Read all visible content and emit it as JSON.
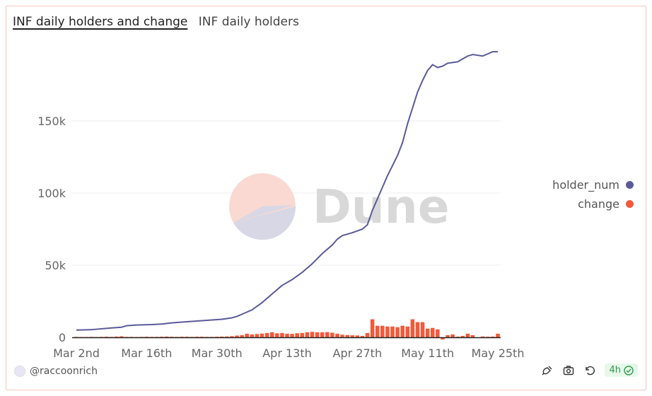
{
  "header": {
    "title": "INF daily holders and change",
    "subtitle": "INF daily holders"
  },
  "watermark": "Dune",
  "footer": {
    "author": "@raccoonrich",
    "refresh_badge": "4h"
  },
  "colors": {
    "holder_line": "#5a5a9a",
    "change_bar": "#f15a3a",
    "grid": "#ececec",
    "axis_text": "#666666"
  },
  "chart_data": {
    "type": "line+bar",
    "title": "INF daily holders and change",
    "xlabel": "",
    "ylabel": "",
    "ylim": [
      0,
      200000
    ],
    "yticks": [
      0,
      50000,
      100000,
      150000
    ],
    "ytick_labels": [
      "0",
      "50k",
      "100k",
      "150k"
    ],
    "xtick_labels": [
      "Mar 2nd",
      "Mar 16th",
      "Mar 30th",
      "Apr 13th",
      "Apr 27th",
      "May 11th",
      "May 25th"
    ],
    "legend": [
      "holder_num",
      "change"
    ],
    "legend_position": "right",
    "start_date": "2024-03-02",
    "days": 85,
    "series": [
      {
        "name": "holder_num",
        "kind": "line",
        "color": "#5a5a9a",
        "points": [
          [
            0,
            5000
          ],
          [
            3,
            5300
          ],
          [
            7,
            6500
          ],
          [
            9,
            7000
          ],
          [
            10,
            8000
          ],
          [
            12,
            8500
          ],
          [
            15,
            8800
          ],
          [
            17,
            9200
          ],
          [
            19,
            10000
          ],
          [
            22,
            10800
          ],
          [
            25,
            11500
          ],
          [
            27,
            12000
          ],
          [
            29,
            12500
          ],
          [
            31,
            13500
          ],
          [
            32,
            14500
          ],
          [
            33,
            16000
          ],
          [
            35,
            19000
          ],
          [
            37,
            24000
          ],
          [
            39,
            30000
          ],
          [
            41,
            36000
          ],
          [
            43,
            40000
          ],
          [
            45,
            45000
          ],
          [
            47,
            51000
          ],
          [
            49,
            58000
          ],
          [
            51,
            64000
          ],
          [
            52,
            68000
          ],
          [
            53,
            70500
          ],
          [
            55,
            72500
          ],
          [
            57,
            75000
          ],
          [
            58,
            78000
          ],
          [
            59,
            88000
          ],
          [
            61,
            104000
          ],
          [
            62,
            112000
          ],
          [
            64,
            126000
          ],
          [
            65,
            135000
          ],
          [
            66,
            148000
          ],
          [
            68,
            170000
          ],
          [
            69,
            178000
          ],
          [
            70,
            185000
          ],
          [
            71,
            189000
          ],
          [
            72,
            187000
          ],
          [
            73,
            188000
          ],
          [
            74,
            190000
          ],
          [
            75,
            190500
          ],
          [
            76,
            191000
          ],
          [
            77,
            193000
          ],
          [
            78,
            195000
          ],
          [
            79,
            196000
          ],
          [
            80,
            195500
          ],
          [
            81,
            195000
          ],
          [
            82,
            196500
          ],
          [
            83,
            198000
          ],
          [
            84,
            198000
          ]
        ]
      },
      {
        "name": "change",
        "kind": "bar",
        "color": "#f15a3a",
        "values": [
          300,
          200,
          200,
          300,
          200,
          300,
          400,
          300,
          500,
          700,
          300,
          300,
          200,
          300,
          400,
          300,
          300,
          400,
          500,
          400,
          300,
          400,
          400,
          300,
          400,
          400,
          300,
          300,
          400,
          500,
          600,
          800,
          1200,
          1500,
          2500,
          2000,
          2300,
          2600,
          3000,
          3500,
          2800,
          3000,
          2500,
          2400,
          2800,
          3000,
          3500,
          3800,
          3500,
          3500,
          3600,
          3200,
          2500,
          1800,
          1600,
          1400,
          1300,
          1000,
          3000,
          12500,
          8000,
          8000,
          7500,
          7500,
          7000,
          8000,
          7500,
          12500,
          10500,
          10500,
          6000,
          6500,
          5500,
          -1500,
          1500,
          2000,
          500,
          1000,
          2500,
          1500,
          -500,
          600,
          400,
          500,
          2500
        ]
      }
    ]
  }
}
